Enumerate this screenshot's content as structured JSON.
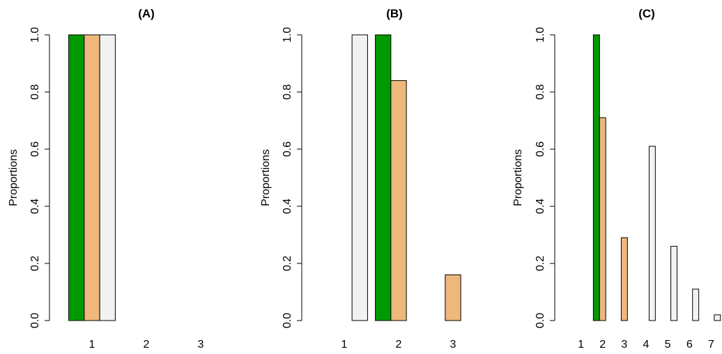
{
  "colors": {
    "series1": "#009900",
    "series2": "#EEB77C",
    "series3": "#F2F2F2"
  },
  "chart_data": [
    {
      "type": "bar",
      "title": "(A)",
      "xlabel": "",
      "ylabel": "Proportions",
      "ylim": [
        0,
        1
      ],
      "yticks": [
        "0.0",
        "0.2",
        "0.4",
        "0.6",
        "0.8",
        "1.0"
      ],
      "categories": [
        "1",
        "2",
        "3"
      ],
      "series": [
        {
          "values": [
            1.0,
            0.0,
            0.0
          ]
        },
        {
          "values": [
            1.0,
            0.0,
            0.0
          ]
        },
        {
          "values": [
            1.0,
            0.0,
            0.0
          ]
        }
      ]
    },
    {
      "type": "bar",
      "title": "(B)",
      "xlabel": "",
      "ylabel": "Proportions",
      "ylim": [
        0,
        1
      ],
      "yticks": [
        "0.0",
        "0.2",
        "0.4",
        "0.6",
        "0.8",
        "1.0"
      ],
      "categories": [
        "1",
        "2",
        "3"
      ],
      "series": [
        {
          "values": [
            0.0,
            1.0,
            0.0
          ]
        },
        {
          "values": [
            0.0,
            0.84,
            0.16
          ]
        },
        {
          "values": [
            1.0,
            0.0,
            0.0
          ]
        }
      ]
    },
    {
      "type": "bar",
      "title": "(C)",
      "xlabel": "",
      "ylabel": "Proportions",
      "ylim": [
        0,
        1
      ],
      "yticks": [
        "0.0",
        "0.2",
        "0.4",
        "0.6",
        "0.8",
        "1.0"
      ],
      "categories": [
        "1",
        "2",
        "3",
        "4",
        "5",
        "6",
        "7"
      ],
      "series": [
        {
          "values": [
            0.0,
            1.0,
            0.0,
            0.0,
            0.0,
            0.0,
            0.0
          ]
        },
        {
          "values": [
            0.0,
            0.71,
            0.29,
            0.0,
            0.0,
            0.0,
            0.0
          ]
        },
        {
          "values": [
            0.0,
            0.0,
            0.0,
            0.61,
            0.26,
            0.11,
            0.02
          ]
        }
      ]
    }
  ]
}
